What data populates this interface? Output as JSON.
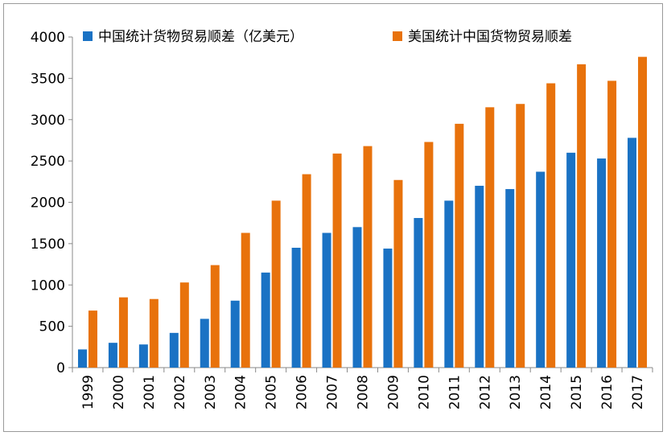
{
  "chart_data": {
    "type": "bar",
    "title": "",
    "xlabel": "",
    "ylabel": "",
    "ylim": [
      0,
      4000
    ],
    "yticks": [
      0,
      500,
      1000,
      1500,
      2000,
      2500,
      3000,
      3500,
      4000
    ],
    "grid": false,
    "legend_position": "top",
    "categories": [
      "1999",
      "2000",
      "2001",
      "2002",
      "2003",
      "2004",
      "2005",
      "2006",
      "2007",
      "2008",
      "2009",
      "2010",
      "2011",
      "2012",
      "2013",
      "2014",
      "2015",
      "2016",
      "2017"
    ],
    "series": [
      {
        "name": "中国统计货物贸易顺差（亿美元）",
        "color": "#1a72c4",
        "values": [
          220,
          300,
          280,
          420,
          590,
          810,
          1150,
          1450,
          1630,
          1700,
          1440,
          1810,
          2020,
          2200,
          2160,
          2370,
          2600,
          2530,
          2780
        ]
      },
      {
        "name": "美国统计中国货物贸易顺差",
        "color": "#e8720c",
        "values": [
          690,
          850,
          830,
          1030,
          1240,
          1630,
          2020,
          2340,
          2590,
          2680,
          2270,
          2730,
          2950,
          3150,
          3190,
          3440,
          3670,
          3470,
          3760
        ]
      }
    ]
  }
}
